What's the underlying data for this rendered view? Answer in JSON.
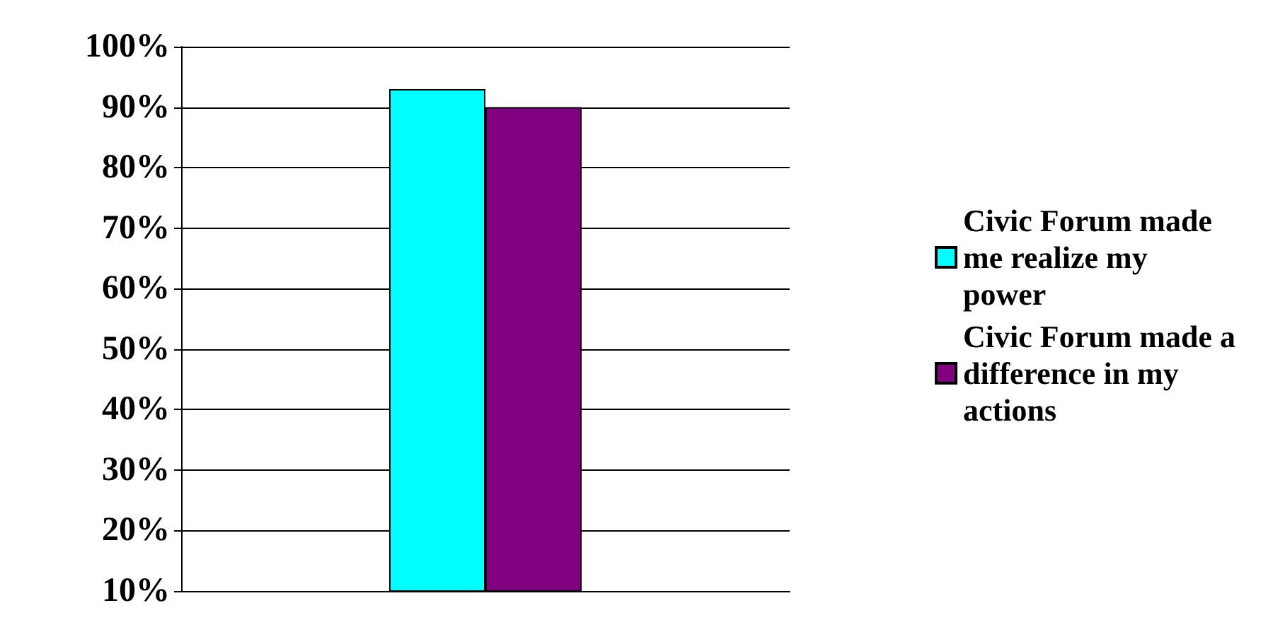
{
  "chart_data": {
    "type": "bar",
    "categories": [
      null
    ],
    "series": [
      {
        "name": "Civic Forum made me realize my power",
        "color": "#00ffff",
        "values": [
          93
        ]
      },
      {
        "name": "Civic Forum made a difference in my actions",
        "color": "#800080",
        "values": [
          90
        ]
      }
    ],
    "ylim": [
      10,
      100
    ],
    "yticks": [
      {
        "value": 10,
        "label": "10%"
      },
      {
        "value": 20,
        "label": "20%"
      },
      {
        "value": 30,
        "label": "30%"
      },
      {
        "value": 40,
        "label": "40%"
      },
      {
        "value": 50,
        "label": "50%"
      },
      {
        "value": 60,
        "label": "60%"
      },
      {
        "value": 70,
        "label": "70%"
      },
      {
        "value": 80,
        "label": "80%"
      },
      {
        "value": 90,
        "label": "90%"
      },
      {
        "value": 100,
        "label": "100%"
      }
    ],
    "grid": "y",
    "legend": "right"
  }
}
